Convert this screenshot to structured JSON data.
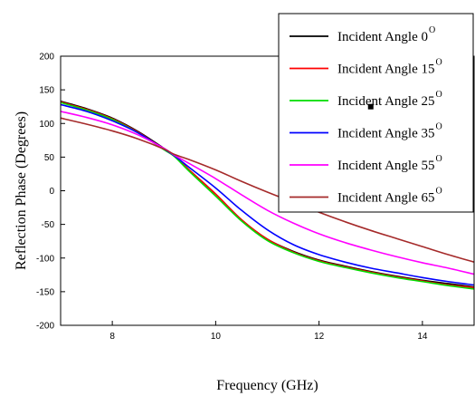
{
  "chart_data": {
    "type": "line",
    "title": "",
    "xlabel": "Frequency (GHz)",
    "ylabel": "Reflection Phase (Degrees)",
    "xlim": [
      7,
      15
    ],
    "ylim": [
      -200,
      200
    ],
    "x_ticks": [
      8,
      10,
      12,
      14
    ],
    "y_ticks": [
      -200,
      -150,
      -100,
      -50,
      0,
      50,
      100,
      150,
      200
    ],
    "grid": false,
    "legend_position": "top-right",
    "x": [
      7,
      7.5,
      8,
      8.5,
      9,
      9.2,
      9.5,
      10,
      10.5,
      11,
      11.5,
      12,
      12.5,
      13,
      13.5,
      14,
      14.5,
      15
    ],
    "series": [
      {
        "name": "Incident Angle 0",
        "sup": "O",
        "color": "#000000",
        "values": [
          133,
          122,
          108,
          88,
          63,
          52,
          30,
          -5,
          -43,
          -72,
          -90,
          -103,
          -112,
          -120,
          -127,
          -133,
          -138,
          -143
        ]
      },
      {
        "name": "Incident Angle 15",
        "sup": "O",
        "color": "#ff0000",
        "values": [
          132,
          121,
          107,
          87,
          62,
          52,
          30,
          -5,
          -43,
          -72,
          -91,
          -104,
          -113,
          -121,
          -128,
          -134,
          -140,
          -144
        ]
      },
      {
        "name": "Incident Angle 25",
        "sup": "O",
        "color": "#00dd00",
        "values": [
          131,
          120,
          106,
          86,
          61,
          51,
          28,
          -8,
          -45,
          -74,
          -92,
          -105,
          -114,
          -122,
          -129,
          -135,
          -141,
          -146
        ]
      },
      {
        "name": "Incident Angle 35",
        "sup": "O",
        "color": "#0000ff",
        "values": [
          128,
          118,
          104,
          86,
          62,
          52,
          34,
          4,
          -29,
          -58,
          -80,
          -95,
          -106,
          -115,
          -122,
          -129,
          -135,
          -140
        ]
      },
      {
        "name": "Incident Angle 55",
        "sup": "O",
        "color": "#ff00ff",
        "values": [
          118,
          109,
          98,
          83,
          63,
          53,
          40,
          18,
          -6,
          -29,
          -48,
          -64,
          -77,
          -88,
          -98,
          -107,
          -115,
          -124
        ]
      },
      {
        "name": "Incident Angle 65",
        "sup": "O",
        "color": "#a52a2a",
        "values": [
          108,
          99,
          89,
          77,
          62,
          54,
          46,
          31,
          14,
          -2,
          -17,
          -32,
          -46,
          -59,
          -71,
          -83,
          -95,
          -106
        ]
      }
    ]
  }
}
